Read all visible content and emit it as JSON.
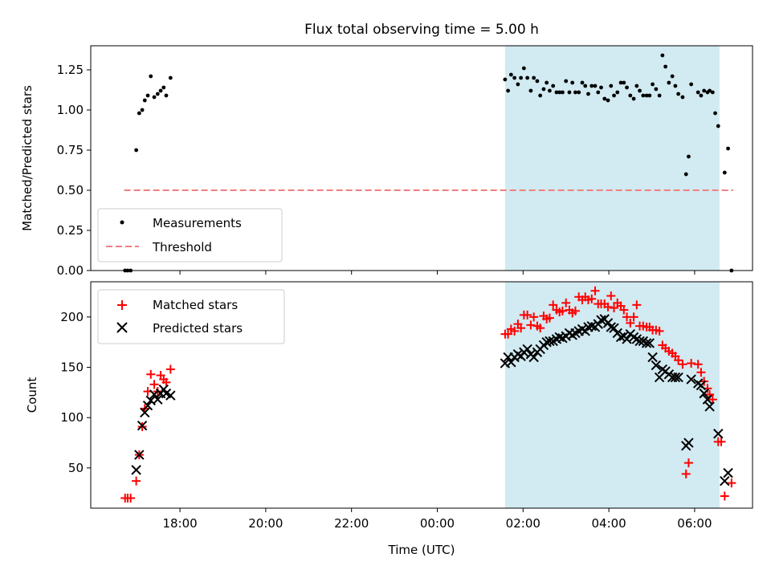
{
  "chart_data": {
    "title": "Flux total observing time = 5.00 h",
    "xlabel": "Time (UTC)",
    "x_unit": "hours since 16:00 UTC",
    "xlim": [
      -0.08,
      15.35
    ],
    "x_ticks": [
      {
        "v": 2,
        "label": "18:00"
      },
      {
        "v": 4,
        "label": "20:00"
      },
      {
        "v": 6,
        "label": "22:00"
      },
      {
        "v": 8,
        "label": "00:00"
      },
      {
        "v": 10,
        "label": "02:00"
      },
      {
        "v": 12,
        "label": "04:00"
      },
      {
        "v": 14,
        "label": "06:00"
      }
    ],
    "shaded_span": [
      9.58,
      14.58
    ],
    "shade_color": "#add8e6",
    "top": {
      "type": "scatter",
      "ylabel": "Matched/Predicted stars",
      "ylim": [
        0,
        1.4
      ],
      "y_ticks": [
        {
          "v": 0,
          "label": "0.00"
        },
        {
          "v": 0.25,
          "label": "0.25"
        },
        {
          "v": 0.5,
          "label": "0.50"
        },
        {
          "v": 0.75,
          "label": "0.75"
        },
        {
          "v": 1.0,
          "label": "1.00"
        },
        {
          "v": 1.25,
          "label": "1.25"
        }
      ],
      "legend": [
        "Measurements",
        "Threshold"
      ],
      "legend_loc": "lower-left",
      "threshold": {
        "value": 0.5,
        "x_range": [
          0.7,
          14.9
        ],
        "color": "#f08080"
      },
      "measurements": [
        [
          0.72,
          0.0
        ],
        [
          0.78,
          0.0
        ],
        [
          0.85,
          0.0
        ],
        [
          0.98,
          0.75
        ],
        [
          1.05,
          0.98
        ],
        [
          1.12,
          1.0
        ],
        [
          1.18,
          1.06
        ],
        [
          1.25,
          1.09
        ],
        [
          1.32,
          1.21
        ],
        [
          1.4,
          1.08
        ],
        [
          1.48,
          1.1
        ],
        [
          1.55,
          1.12
        ],
        [
          1.62,
          1.14
        ],
        [
          1.68,
          1.09
        ],
        [
          1.78,
          1.2
        ],
        [
          9.58,
          1.19
        ],
        [
          9.65,
          1.12
        ],
        [
          9.72,
          1.22
        ],
        [
          9.8,
          1.2
        ],
        [
          9.88,
          1.16
        ],
        [
          9.95,
          1.2
        ],
        [
          10.02,
          1.26
        ],
        [
          10.1,
          1.2
        ],
        [
          10.18,
          1.12
        ],
        [
          10.25,
          1.2
        ],
        [
          10.33,
          1.18
        ],
        [
          10.4,
          1.09
        ],
        [
          10.48,
          1.13
        ],
        [
          10.55,
          1.17
        ],
        [
          10.62,
          1.12
        ],
        [
          10.7,
          1.15
        ],
        [
          10.78,
          1.11
        ],
        [
          10.85,
          1.11
        ],
        [
          10.92,
          1.11
        ],
        [
          11.0,
          1.18
        ],
        [
          11.08,
          1.11
        ],
        [
          11.15,
          1.17
        ],
        [
          11.22,
          1.11
        ],
        [
          11.3,
          1.11
        ],
        [
          11.38,
          1.17
        ],
        [
          11.45,
          1.15
        ],
        [
          11.52,
          1.1
        ],
        [
          11.6,
          1.15
        ],
        [
          11.68,
          1.15
        ],
        [
          11.75,
          1.11
        ],
        [
          11.82,
          1.14
        ],
        [
          11.9,
          1.07
        ],
        [
          11.98,
          1.06
        ],
        [
          12.05,
          1.15
        ],
        [
          12.12,
          1.09
        ],
        [
          12.2,
          1.11
        ],
        [
          12.28,
          1.17
        ],
        [
          12.35,
          1.17
        ],
        [
          12.42,
          1.14
        ],
        [
          12.5,
          1.09
        ],
        [
          12.58,
          1.07
        ],
        [
          12.65,
          1.15
        ],
        [
          12.72,
          1.12
        ],
        [
          12.8,
          1.09
        ],
        [
          12.88,
          1.09
        ],
        [
          12.95,
          1.09
        ],
        [
          13.02,
          1.16
        ],
        [
          13.1,
          1.13
        ],
        [
          13.18,
          1.09
        ],
        [
          13.25,
          1.34
        ],
        [
          13.32,
          1.27
        ],
        [
          13.4,
          1.17
        ],
        [
          13.48,
          1.21
        ],
        [
          13.55,
          1.15
        ],
        [
          13.62,
          1.1
        ],
        [
          13.72,
          1.08
        ],
        [
          13.8,
          0.6
        ],
        [
          13.86,
          0.71
        ],
        [
          13.92,
          1.16
        ],
        [
          14.08,
          1.11
        ],
        [
          14.15,
          1.09
        ],
        [
          14.22,
          1.12
        ],
        [
          14.3,
          1.11
        ],
        [
          14.35,
          1.12
        ],
        [
          14.42,
          1.11
        ],
        [
          14.48,
          0.98
        ],
        [
          14.55,
          0.9
        ],
        [
          14.7,
          0.61
        ],
        [
          14.78,
          0.76
        ],
        [
          14.86,
          0.0
        ]
      ]
    },
    "bottom": {
      "type": "scatter",
      "ylabel": "Count",
      "ylim": [
        10,
        235
      ],
      "y_ticks": [
        {
          "v": 50,
          "label": "50"
        },
        {
          "v": 100,
          "label": "100"
        },
        {
          "v": 150,
          "label": "150"
        },
        {
          "v": 200,
          "label": "200"
        }
      ],
      "legend": [
        "Matched stars",
        "Predicted stars"
      ],
      "legend_loc": "upper-left",
      "series": [
        {
          "name": "Matched stars",
          "marker": "+",
          "color": "#ff0000",
          "points": [
            [
              0.72,
              20
            ],
            [
              0.78,
              20
            ],
            [
              0.85,
              20
            ],
            [
              0.98,
              37
            ],
            [
              1.05,
              63
            ],
            [
              1.12,
              91
            ],
            [
              1.18,
              109
            ],
            [
              1.25,
              126
            ],
            [
              1.32,
              143
            ],
            [
              1.4,
              133
            ],
            [
              1.48,
              126
            ],
            [
              1.55,
              142
            ],
            [
              1.62,
              138
            ],
            [
              1.68,
              135
            ],
            [
              1.78,
              148
            ],
            [
              9.58,
              183
            ],
            [
              9.65,
              183
            ],
            [
              9.72,
              188
            ],
            [
              9.8,
              186
            ],
            [
              9.88,
              193
            ],
            [
              9.95,
              189
            ],
            [
              10.02,
              202
            ],
            [
              10.1,
              202
            ],
            [
              10.18,
              192
            ],
            [
              10.25,
              200
            ],
            [
              10.33,
              191
            ],
            [
              10.4,
              189
            ],
            [
              10.48,
              201
            ],
            [
              10.55,
              198
            ],
            [
              10.62,
              199
            ],
            [
              10.7,
              212
            ],
            [
              10.78,
              207
            ],
            [
              10.85,
              205
            ],
            [
              10.92,
              206
            ],
            [
              11.0,
              214
            ],
            [
              11.08,
              207
            ],
            [
              11.15,
              204
            ],
            [
              11.22,
              206
            ],
            [
              11.3,
              220
            ],
            [
              11.38,
              217
            ],
            [
              11.45,
              220
            ],
            [
              11.52,
              217
            ],
            [
              11.6,
              218
            ],
            [
              11.68,
              226
            ],
            [
              11.75,
              213
            ],
            [
              11.82,
              213
            ],
            [
              11.9,
              213
            ],
            [
              11.98,
              210
            ],
            [
              12.05,
              221
            ],
            [
              12.12,
              209
            ],
            [
              12.2,
              214
            ],
            [
              12.28,
              211
            ],
            [
              12.35,
              207
            ],
            [
              12.42,
              200
            ],
            [
              12.5,
              194
            ],
            [
              12.58,
              200
            ],
            [
              12.65,
              212
            ],
            [
              12.72,
              191
            ],
            [
              12.8,
              191
            ],
            [
              12.88,
              190
            ],
            [
              12.95,
              190
            ],
            [
              13.02,
              187
            ],
            [
              13.1,
              187
            ],
            [
              13.18,
              186
            ],
            [
              13.25,
              172
            ],
            [
              13.32,
              169
            ],
            [
              13.4,
              166
            ],
            [
              13.48,
              164
            ],
            [
              13.55,
              161
            ],
            [
              13.62,
              157
            ],
            [
              13.72,
              153
            ],
            [
              13.8,
              44
            ],
            [
              13.86,
              55
            ],
            [
              13.92,
              154
            ],
            [
              14.08,
              153
            ],
            [
              14.15,
              145
            ],
            [
              14.22,
              136
            ],
            [
              14.3,
              129
            ],
            [
              14.35,
              123
            ],
            [
              14.42,
              118
            ],
            [
              14.55,
              76
            ],
            [
              14.62,
              76
            ],
            [
              14.7,
              22
            ],
            [
              14.86,
              35
            ]
          ]
        },
        {
          "name": "Predicted stars",
          "marker": "x",
          "color": "#000000",
          "points": [
            [
              0.98,
              48
            ],
            [
              1.05,
              63
            ],
            [
              1.12,
              92
            ],
            [
              1.18,
              105
            ],
            [
              1.25,
              112
            ],
            [
              1.32,
              117
            ],
            [
              1.4,
              123
            ],
            [
              1.48,
              118
            ],
            [
              1.55,
              124
            ],
            [
              1.62,
              128
            ],
            [
              1.68,
              124
            ],
            [
              1.78,
              122
            ],
            [
              9.58,
              154
            ],
            [
              9.65,
              160
            ],
            [
              9.72,
              155
            ],
            [
              9.8,
              160
            ],
            [
              9.88,
              163
            ],
            [
              9.95,
              161
            ],
            [
              10.02,
              165
            ],
            [
              10.1,
              168
            ],
            [
              10.18,
              163
            ],
            [
              10.25,
              160
            ],
            [
              10.33,
              165
            ],
            [
              10.4,
              168
            ],
            [
              10.48,
              172
            ],
            [
              10.55,
              175
            ],
            [
              10.62,
              176
            ],
            [
              10.7,
              176
            ],
            [
              10.78,
              178
            ],
            [
              10.85,
              180
            ],
            [
              10.92,
              179
            ],
            [
              11.0,
              181
            ],
            [
              11.08,
              184
            ],
            [
              11.15,
              182
            ],
            [
              11.22,
              184
            ],
            [
              11.3,
              186
            ],
            [
              11.38,
              188
            ],
            [
              11.45,
              186
            ],
            [
              11.52,
              190
            ],
            [
              11.6,
              191
            ],
            [
              11.68,
              190
            ],
            [
              11.75,
              193
            ],
            [
              11.82,
              197
            ],
            [
              11.9,
              198
            ],
            [
              11.98,
              194
            ],
            [
              12.05,
              190
            ],
            [
              12.12,
              189
            ],
            [
              12.2,
              184
            ],
            [
              12.28,
              180
            ],
            [
              12.35,
              181
            ],
            [
              12.42,
              178
            ],
            [
              12.5,
              183
            ],
            [
              12.58,
              180
            ],
            [
              12.65,
              178
            ],
            [
              12.72,
              176
            ],
            [
              12.8,
              176
            ],
            [
              12.88,
              174
            ],
            [
              12.95,
              174
            ],
            [
              13.02,
              160
            ],
            [
              13.1,
              152
            ],
            [
              13.18,
              140
            ],
            [
              13.25,
              148
            ],
            [
              13.32,
              146
            ],
            [
              13.4,
              143
            ],
            [
              13.48,
              140
            ],
            [
              13.55,
              140
            ],
            [
              13.62,
              140
            ],
            [
              13.8,
              72
            ],
            [
              13.86,
              75
            ],
            [
              13.92,
              138
            ],
            [
              14.08,
              134
            ],
            [
              14.15,
              132
            ],
            [
              14.22,
              124
            ],
            [
              14.3,
              118
            ],
            [
              14.35,
              111
            ],
            [
              14.55,
              84
            ],
            [
              14.7,
              37
            ],
            [
              14.78,
              45
            ]
          ]
        }
      ]
    }
  }
}
